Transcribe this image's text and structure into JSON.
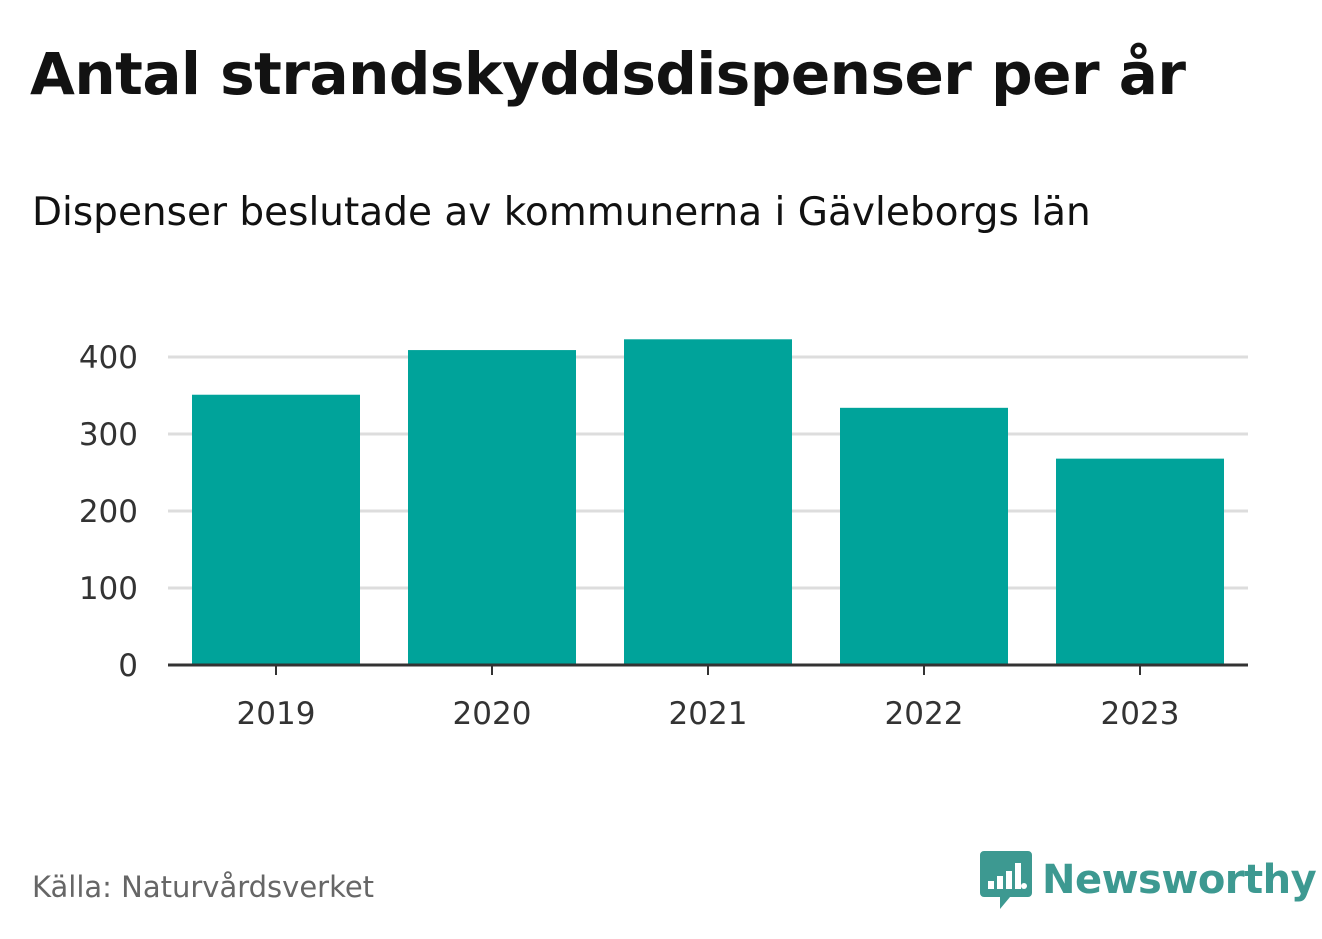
{
  "title": "Antal strandskyddsdispenser per år",
  "subtitle": "Dispenser beslutade av kommunerna i Gävleborgs län",
  "source": "Källa: Naturvårdsverket",
  "brand": {
    "name": "Newsworthy",
    "icon": "newsworthy-logo-icon",
    "color": "#3d9991"
  },
  "colors": {
    "bar": "#00a39a",
    "grid": "#dddddd",
    "axis": "#333333"
  },
  "chart_data": {
    "type": "bar",
    "title": "Antal strandskyddsdispenser per år",
    "subtitle": "Dispenser beslutade av kommunerna i Gävleborgs län",
    "xlabel": "",
    "ylabel": "",
    "categories": [
      "2019",
      "2020",
      "2021",
      "2022",
      "2023"
    ],
    "values": [
      351,
      409,
      423,
      334,
      268
    ],
    "ylim": [
      0,
      450
    ],
    "yticks": [
      0,
      100,
      200,
      300,
      400
    ],
    "ytick_labels": [
      "0",
      "100",
      "200",
      "300",
      "400"
    ],
    "grid": true,
    "legend": "none"
  }
}
